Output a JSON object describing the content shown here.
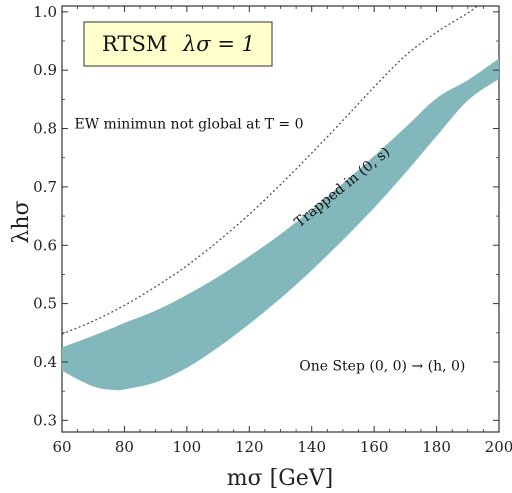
{
  "chart_data": {
    "type": "area",
    "xlabel": "mσ [GeV]",
    "ylabel": "λhσ",
    "xlim": [
      60,
      200
    ],
    "ylim": [
      0.28,
      1.01
    ],
    "x_ticks": [
      60,
      80,
      100,
      120,
      140,
      160,
      180,
      200
    ],
    "y_ticks": [
      0.3,
      0.4,
      0.5,
      0.6,
      0.7,
      0.8,
      0.9,
      1.0
    ],
    "x_tick_labels": [
      "60",
      "80",
      "100",
      "120",
      "140",
      "160",
      "180",
      "200"
    ],
    "y_tick_labels": [
      "0.3",
      "0.4",
      "0.5",
      "0.6",
      "0.7",
      "0.8",
      "0.9",
      "1.0"
    ],
    "legend_box": {
      "model": "RTSM",
      "parameter": "λσ = 1"
    },
    "band_color": "#82b8bc",
    "dotted_color": "#555555",
    "series": [
      {
        "kind": "band",
        "x": [
          60,
          70,
          77,
          80,
          90,
          100,
          110,
          120,
          130,
          140,
          150,
          160,
          170,
          180,
          190,
          200
        ],
        "upper": [
          0.425,
          0.445,
          0.46,
          0.467,
          0.488,
          0.515,
          0.546,
          0.581,
          0.619,
          0.661,
          0.706,
          0.753,
          0.802,
          0.852,
          0.883,
          0.92
        ],
        "lower": [
          0.385,
          0.358,
          0.352,
          0.353,
          0.365,
          0.39,
          0.425,
          0.465,
          0.509,
          0.557,
          0.609,
          0.664,
          0.724,
          0.787,
          0.848,
          0.885
        ]
      },
      {
        "kind": "dotted",
        "x": [
          60,
          70,
          80,
          90,
          100,
          110,
          120,
          130,
          140,
          150,
          160,
          170,
          180,
          190,
          193
        ],
        "y": [
          0.448,
          0.47,
          0.497,
          0.529,
          0.565,
          0.607,
          0.653,
          0.704,
          0.758,
          0.814,
          0.871,
          0.925,
          0.965,
          0.998,
          1.01
        ]
      }
    ],
    "annotations": [
      {
        "text": "EW minimun not global at T = 0",
        "x": 64,
        "y": 0.8
      },
      {
        "text": "Trapped in (0, s)",
        "x": 136,
        "y": 0.63,
        "rotate": -39
      },
      {
        "text": "One Step (0, 0) → (h, 0)",
        "x": 136,
        "y": 0.385
      }
    ]
  }
}
